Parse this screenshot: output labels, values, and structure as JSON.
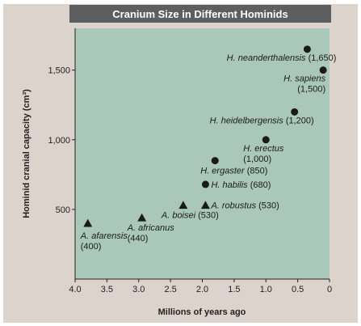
{
  "chart_data": {
    "type": "scatter",
    "title": "Cranium Size in Different Hominids",
    "xlabel": "Millions of years ago",
    "ylabel": "Hominid cranial capacity (cm³)",
    "xlim": [
      4.0,
      0
    ],
    "ylim": [
      0,
      1800
    ],
    "x_ticks": [
      "4.0",
      "3.5",
      "3.0",
      "2.5",
      "2.0",
      "1.5",
      "1.0",
      "0.5",
      "0"
    ],
    "y_ticks": [
      "500",
      "1,000",
      "1,500"
    ],
    "grid": false,
    "colors": {
      "plot_background": "#a9c8ba",
      "panel": "#dcd3cd",
      "title_bar": "#5d5e60",
      "marker": "#1a1a1a"
    },
    "points": [
      {
        "species": "A. afarensis",
        "value_label": "(400)",
        "x": 3.8,
        "y": 400,
        "marker": "triangle"
      },
      {
        "species": "A. africanus",
        "value_label": "(440)",
        "x": 2.95,
        "y": 440,
        "marker": "triangle"
      },
      {
        "species": "A. boisei",
        "value_label": "(530)",
        "x": 2.3,
        "y": 530,
        "marker": "triangle"
      },
      {
        "species": "A. robustus",
        "value_label": "(530)",
        "x": 1.95,
        "y": 530,
        "marker": "triangle"
      },
      {
        "species": "H. habilis",
        "value_label": "(680)",
        "x": 1.95,
        "y": 680,
        "marker": "circle"
      },
      {
        "species": "H. ergaster",
        "value_label": "(850)",
        "x": 1.8,
        "y": 850,
        "marker": "circle"
      },
      {
        "species": "H. erectus",
        "value_label": "(1,000)",
        "x": 1.0,
        "y": 1000,
        "marker": "circle"
      },
      {
        "species": "H. heidelbergensis",
        "value_label": "(1,200)",
        "x": 0.55,
        "y": 1200,
        "marker": "circle"
      },
      {
        "species": "H. neanderthalensis",
        "value_label": "(1,650)",
        "x": 0.35,
        "y": 1650,
        "marker": "circle"
      },
      {
        "species": "H. sapiens",
        "value_label": "(1,500)",
        "x": 0.1,
        "y": 1500,
        "marker": "circle"
      }
    ]
  }
}
